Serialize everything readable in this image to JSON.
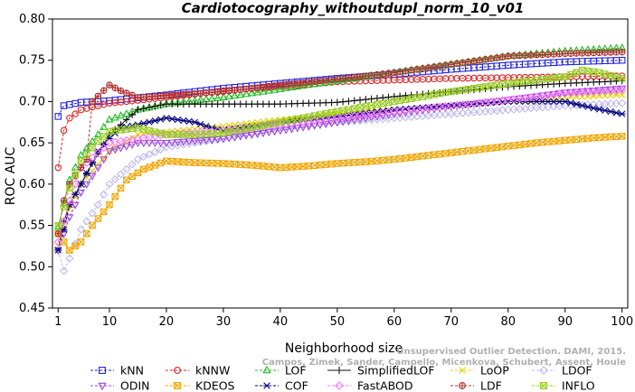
{
  "chart_data": {
    "type": "line",
    "title": "Cardiotocography_withoutdupl_norm_10_v01",
    "xlabel": "Neighborhood size",
    "ylabel": "ROC AUC",
    "xlim": [
      0,
      101
    ],
    "ylim": [
      0.45,
      0.8
    ],
    "x_ticks": [
      "1",
      "10",
      "20",
      "30",
      "40",
      "50",
      "60",
      "70",
      "80",
      "90",
      "100"
    ],
    "y_ticks": [
      "0.45",
      "0.50",
      "0.55",
      "0.60",
      "0.65",
      "0.70",
      "0.75",
      "0.80"
    ],
    "x_tick_values": [
      1,
      10,
      20,
      30,
      40,
      50,
      60,
      70,
      80,
      90,
      100
    ],
    "y_tick_values": [
      0.45,
      0.5,
      0.55,
      0.6,
      0.65,
      0.7,
      0.75,
      0.8
    ],
    "legend_placement": "bottom",
    "series": [
      {
        "name": "kNN",
        "color": "#2222dd",
        "marker": "square",
        "dashed": true,
        "points": [
          [
            1,
            0.682
          ],
          [
            2,
            0.695
          ],
          [
            5,
            0.699
          ],
          [
            10,
            0.701
          ],
          [
            20,
            0.708
          ],
          [
            30,
            0.716
          ],
          [
            40,
            0.722
          ],
          [
            50,
            0.728
          ],
          [
            60,
            0.733
          ],
          [
            70,
            0.739
          ],
          [
            80,
            0.744
          ],
          [
            90,
            0.748
          ],
          [
            100,
            0.75
          ]
        ]
      },
      {
        "name": "kNNW",
        "color": "#dd2222",
        "marker": "circle",
        "dashed": true,
        "points": [
          [
            1,
            0.62
          ],
          [
            2,
            0.665
          ],
          [
            3,
            0.68
          ],
          [
            5,
            0.69
          ],
          [
            10,
            0.698
          ],
          [
            20,
            0.705
          ],
          [
            30,
            0.713
          ],
          [
            40,
            0.718
          ],
          [
            50,
            0.724
          ],
          [
            60,
            0.726
          ],
          [
            70,
            0.728
          ],
          [
            80,
            0.729
          ],
          [
            90,
            0.73
          ],
          [
            100,
            0.731
          ]
        ]
      },
      {
        "name": "LOF",
        "color": "#22bb22",
        "marker": "triangle-up",
        "dashed": true,
        "points": [
          [
            1,
            0.548
          ],
          [
            3,
            0.605
          ],
          [
            5,
            0.635
          ],
          [
            8,
            0.66
          ],
          [
            10,
            0.678
          ],
          [
            15,
            0.69
          ],
          [
            20,
            0.697
          ],
          [
            30,
            0.705
          ],
          [
            40,
            0.715
          ],
          [
            50,
            0.725
          ],
          [
            60,
            0.735
          ],
          [
            70,
            0.745
          ],
          [
            80,
            0.755
          ],
          [
            90,
            0.761
          ],
          [
            100,
            0.765
          ]
        ]
      },
      {
        "name": "SimplifiedLOF",
        "color": "#111111",
        "marker": "plus",
        "dashed": false,
        "points": [
          [
            1,
            0.523
          ],
          [
            2,
            0.555
          ],
          [
            3,
            0.575
          ],
          [
            5,
            0.6
          ],
          [
            7,
            0.625
          ],
          [
            10,
            0.66
          ],
          [
            15,
            0.69
          ],
          [
            20,
            0.697
          ],
          [
            30,
            0.697
          ],
          [
            40,
            0.697
          ],
          [
            50,
            0.699
          ],
          [
            60,
            0.706
          ],
          [
            70,
            0.712
          ],
          [
            80,
            0.718
          ],
          [
            90,
            0.722
          ],
          [
            100,
            0.725
          ]
        ]
      },
      {
        "name": "LoOP",
        "color": "#e8d000",
        "marker": "x",
        "dashed": true,
        "points": [
          [
            1,
            0.525
          ],
          [
            3,
            0.57
          ],
          [
            5,
            0.6
          ],
          [
            10,
            0.64
          ],
          [
            15,
            0.66
          ],
          [
            20,
            0.663
          ],
          [
            30,
            0.67
          ],
          [
            40,
            0.678
          ],
          [
            50,
            0.685
          ],
          [
            60,
            0.69
          ],
          [
            70,
            0.695
          ],
          [
            80,
            0.7
          ],
          [
            90,
            0.705
          ],
          [
            100,
            0.708
          ]
        ]
      },
      {
        "name": "LDOF",
        "color": "#c0b8ee",
        "marker": "diamond",
        "dashed": true,
        "points": [
          [
            1,
            0.52
          ],
          [
            2,
            0.495
          ],
          [
            3,
            0.51
          ],
          [
            5,
            0.545
          ],
          [
            8,
            0.575
          ],
          [
            10,
            0.6
          ],
          [
            15,
            0.63
          ],
          [
            20,
            0.645
          ],
          [
            30,
            0.655
          ],
          [
            40,
            0.67
          ],
          [
            50,
            0.675
          ],
          [
            60,
            0.68
          ],
          [
            70,
            0.685
          ],
          [
            80,
            0.69
          ],
          [
            90,
            0.695
          ],
          [
            100,
            0.698
          ]
        ]
      },
      {
        "name": "ODIN",
        "color": "#9944dd",
        "marker": "triangle-down",
        "dashed": true,
        "points": [
          [
            1,
            0.52
          ],
          [
            3,
            0.56
          ],
          [
            5,
            0.59
          ],
          [
            10,
            0.64
          ],
          [
            15,
            0.65
          ],
          [
            20,
            0.65
          ],
          [
            30,
            0.655
          ],
          [
            40,
            0.665
          ],
          [
            50,
            0.675
          ],
          [
            60,
            0.685
          ],
          [
            70,
            0.694
          ],
          [
            80,
            0.702
          ],
          [
            90,
            0.711
          ],
          [
            100,
            0.716
          ]
        ]
      },
      {
        "name": "KDEOS",
        "color": "#f0a500",
        "marker": "square-x",
        "dashed": true,
        "points": [
          [
            1,
            0.54
          ],
          [
            3,
            0.52
          ],
          [
            5,
            0.53
          ],
          [
            7,
            0.55
          ],
          [
            10,
            0.575
          ],
          [
            13,
            0.605
          ],
          [
            16,
            0.618
          ],
          [
            20,
            0.628
          ],
          [
            25,
            0.626
          ],
          [
            30,
            0.625
          ],
          [
            35,
            0.623
          ],
          [
            40,
            0.62
          ],
          [
            45,
            0.622
          ],
          [
            50,
            0.625
          ],
          [
            55,
            0.627
          ],
          [
            60,
            0.63
          ],
          [
            65,
            0.634
          ],
          [
            70,
            0.638
          ],
          [
            75,
            0.642
          ],
          [
            80,
            0.646
          ],
          [
            85,
            0.65
          ],
          [
            90,
            0.653
          ],
          [
            95,
            0.656
          ],
          [
            100,
            0.658
          ]
        ]
      },
      {
        "name": "COF",
        "color": "#000080",
        "marker": "asterisk",
        "dashed": true,
        "points": [
          [
            1,
            0.52
          ],
          [
            2,
            0.545
          ],
          [
            3,
            0.575
          ],
          [
            5,
            0.6
          ],
          [
            8,
            0.64
          ],
          [
            10,
            0.655
          ],
          [
            12,
            0.668
          ],
          [
            15,
            0.672
          ],
          [
            20,
            0.68
          ],
          [
            25,
            0.675
          ],
          [
            28,
            0.668
          ],
          [
            30,
            0.665
          ],
          [
            35,
            0.67
          ],
          [
            40,
            0.675
          ],
          [
            50,
            0.682
          ],
          [
            60,
            0.69
          ],
          [
            70,
            0.695
          ],
          [
            80,
            0.7
          ],
          [
            90,
            0.7
          ],
          [
            95,
            0.692
          ],
          [
            100,
            0.685
          ]
        ]
      },
      {
        "name": "FastABOD",
        "color": "#ff77ff",
        "marker": "diamond",
        "dashed": true,
        "points": [
          [
            1,
            0.53
          ],
          [
            3,
            0.58
          ],
          [
            5,
            0.62
          ],
          [
            10,
            0.65
          ],
          [
            15,
            0.655
          ],
          [
            20,
            0.66
          ],
          [
            30,
            0.665
          ],
          [
            40,
            0.672
          ],
          [
            50,
            0.68
          ],
          [
            60,
            0.688
          ],
          [
            70,
            0.695
          ],
          [
            80,
            0.702
          ],
          [
            90,
            0.71
          ],
          [
            100,
            0.714
          ]
        ]
      },
      {
        "name": "LDF",
        "color": "#b03030",
        "marker": "circle-plus",
        "dashed": true,
        "points": [
          [
            1,
            0.54
          ],
          [
            2,
            0.58
          ],
          [
            3,
            0.6
          ],
          [
            4,
            0.61
          ],
          [
            5,
            0.62
          ],
          [
            6,
            0.63
          ],
          [
            7,
            0.7
          ],
          [
            10,
            0.72
          ],
          [
            12,
            0.713
          ],
          [
            15,
            0.705
          ],
          [
            20,
            0.707
          ],
          [
            30,
            0.712
          ],
          [
            40,
            0.72
          ],
          [
            50,
            0.727
          ],
          [
            60,
            0.735
          ],
          [
            70,
            0.745
          ],
          [
            80,
            0.755
          ],
          [
            90,
            0.758
          ],
          [
            100,
            0.76
          ]
        ]
      },
      {
        "name": "INFLO",
        "color": "#99cc22",
        "marker": "square-x",
        "dashed": true,
        "points": [
          [
            1,
            0.55
          ],
          [
            3,
            0.595
          ],
          [
            5,
            0.628
          ],
          [
            8,
            0.652
          ],
          [
            10,
            0.664
          ],
          [
            15,
            0.668
          ],
          [
            20,
            0.66
          ],
          [
            25,
            0.66
          ],
          [
            30,
            0.662
          ],
          [
            40,
            0.675
          ],
          [
            50,
            0.688
          ],
          [
            60,
            0.7
          ],
          [
            70,
            0.712
          ],
          [
            80,
            0.722
          ],
          [
            90,
            0.73
          ],
          [
            93,
            0.738
          ],
          [
            96,
            0.735
          ],
          [
            100,
            0.728
          ]
        ]
      }
    ]
  },
  "watermark": {
    "line1": "Unsupervised Outlier Detection. DAMI, 2015.",
    "line2": "Campos, Zimek, Sander, Campello, Micenkova, Schubert, Assent, Houle"
  }
}
